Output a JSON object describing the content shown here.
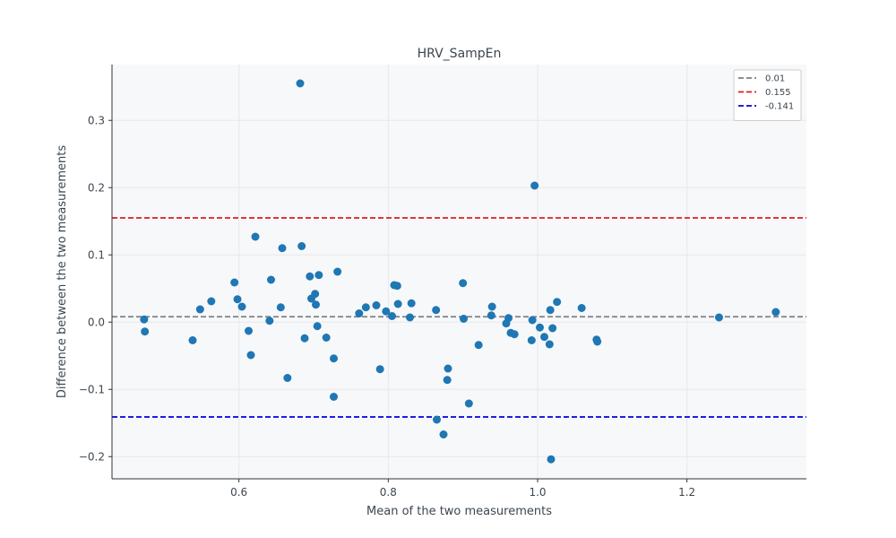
{
  "chart_data": {
    "type": "scatter",
    "title": "HRV_SampEn",
    "xlabel": "Mean of the two measurements",
    "ylabel": "Difference between the two measurements",
    "xlim": [
      0.43,
      1.36
    ],
    "ylim": [
      -0.233,
      0.383
    ],
    "x_ticks": [
      0.6,
      0.8,
      1.0,
      1.2
    ],
    "x_tick_labels": [
      "0.6",
      "0.8",
      "1.0",
      "1.2"
    ],
    "y_ticks": [
      -0.2,
      -0.1,
      0.0,
      0.1,
      0.2,
      0.3
    ],
    "y_tick_labels": [
      "−0.2",
      "−0.1",
      "0.0",
      "0.1",
      "0.2",
      "0.3"
    ],
    "grid": true,
    "legend_position": "top-right",
    "background_color": "#f7f8fa",
    "point_color": "#1f77b4",
    "reference_lines": [
      {
        "label": "0.01",
        "y": 0.008,
        "color": "#808080",
        "style": "dashed"
      },
      {
        "label": "0.155",
        "y": 0.155,
        "color": "#e41a1c",
        "style": "dashed"
      },
      {
        "label": "-0.141",
        "y": -0.141,
        "color": "#0000e0",
        "style": "dashed"
      }
    ],
    "points": [
      {
        "x": 0.473,
        "y": 0.004
      },
      {
        "x": 0.474,
        "y": -0.014
      },
      {
        "x": 0.538,
        "y": -0.027
      },
      {
        "x": 0.548,
        "y": 0.019
      },
      {
        "x": 0.563,
        "y": 0.031
      },
      {
        "x": 0.594,
        "y": 0.059
      },
      {
        "x": 0.598,
        "y": 0.034
      },
      {
        "x": 0.604,
        "y": 0.023
      },
      {
        "x": 0.613,
        "y": -0.013
      },
      {
        "x": 0.616,
        "y": -0.049
      },
      {
        "x": 0.622,
        "y": 0.127
      },
      {
        "x": 0.641,
        "y": 0.002
      },
      {
        "x": 0.643,
        "y": 0.063
      },
      {
        "x": 0.656,
        "y": 0.022
      },
      {
        "x": 0.658,
        "y": 0.11
      },
      {
        "x": 0.665,
        "y": -0.083
      },
      {
        "x": 0.682,
        "y": 0.355
      },
      {
        "x": 0.684,
        "y": 0.113
      },
      {
        "x": 0.688,
        "y": -0.024
      },
      {
        "x": 0.695,
        "y": 0.068
      },
      {
        "x": 0.697,
        "y": 0.035
      },
      {
        "x": 0.702,
        "y": 0.042
      },
      {
        "x": 0.703,
        "y": 0.026
      },
      {
        "x": 0.705,
        "y": -0.006
      },
      {
        "x": 0.707,
        "y": 0.07
      },
      {
        "x": 0.717,
        "y": -0.023
      },
      {
        "x": 0.727,
        "y": -0.054
      },
      {
        "x": 0.727,
        "y": -0.111
      },
      {
        "x": 0.732,
        "y": 0.075
      },
      {
        "x": 0.761,
        "y": 0.013
      },
      {
        "x": 0.77,
        "y": 0.022
      },
      {
        "x": 0.784,
        "y": 0.025
      },
      {
        "x": 0.789,
        "y": -0.07
      },
      {
        "x": 0.797,
        "y": 0.016
      },
      {
        "x": 0.805,
        "y": 0.009
      },
      {
        "x": 0.808,
        "y": 0.055
      },
      {
        "x": 0.812,
        "y": 0.054
      },
      {
        "x": 0.813,
        "y": 0.027
      },
      {
        "x": 0.829,
        "y": 0.007
      },
      {
        "x": 0.831,
        "y": 0.028
      },
      {
        "x": 0.864,
        "y": 0.018
      },
      {
        "x": 0.865,
        "y": -0.145
      },
      {
        "x": 0.874,
        "y": -0.167
      },
      {
        "x": 0.879,
        "y": -0.086
      },
      {
        "x": 0.88,
        "y": -0.069
      },
      {
        "x": 0.9,
        "y": 0.058
      },
      {
        "x": 0.901,
        "y": 0.005
      },
      {
        "x": 0.908,
        "y": -0.121
      },
      {
        "x": 0.921,
        "y": -0.034
      },
      {
        "x": 0.938,
        "y": 0.01
      },
      {
        "x": 0.939,
        "y": 0.023
      },
      {
        "x": 0.958,
        "y": -0.002
      },
      {
        "x": 0.961,
        "y": 0.006
      },
      {
        "x": 0.964,
        "y": -0.016
      },
      {
        "x": 0.969,
        "y": -0.018
      },
      {
        "x": 0.992,
        "y": -0.027
      },
      {
        "x": 0.993,
        "y": 0.003
      },
      {
        "x": 0.996,
        "y": 0.203
      },
      {
        "x": 1.003,
        "y": -0.008
      },
      {
        "x": 1.009,
        "y": -0.022
      },
      {
        "x": 1.016,
        "y": -0.033
      },
      {
        "x": 1.017,
        "y": 0.018
      },
      {
        "x": 1.018,
        "y": -0.204
      },
      {
        "x": 1.02,
        "y": -0.009
      },
      {
        "x": 1.026,
        "y": 0.03
      },
      {
        "x": 1.059,
        "y": 0.021
      },
      {
        "x": 1.079,
        "y": -0.026
      },
      {
        "x": 1.08,
        "y": -0.029
      },
      {
        "x": 1.243,
        "y": 0.007
      },
      {
        "x": 1.319,
        "y": 0.015
      }
    ]
  }
}
